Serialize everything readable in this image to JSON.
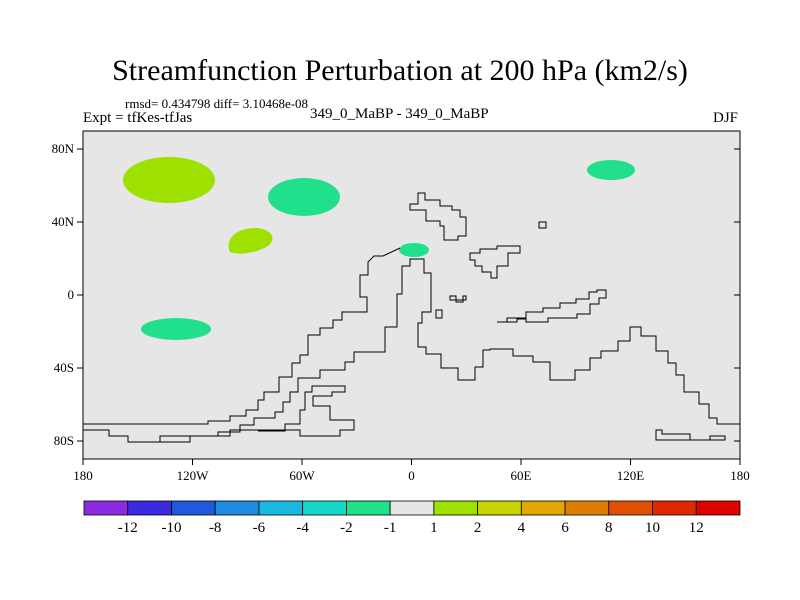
{
  "figure": {
    "title": "Streamfunction Perturbation at 200 hPa (km2/s)",
    "stats": "rmsd= 0.434798 diff= 3.10468e-08",
    "experiment": "Expt = tfKes-tfJas",
    "subtitle": "349_0_MaBP - 349_0_MaBP",
    "season": "DJF"
  },
  "axes": {
    "x_ticks": [
      "180",
      "120W",
      "60W",
      "0",
      "60E",
      "120E",
      "180"
    ],
    "y_ticks": [
      "80N",
      "40N",
      "0",
      "40S",
      "80S"
    ]
  },
  "colorbar": {
    "labels": [
      "-12",
      "-10",
      "-8",
      "-6",
      "-4",
      "-2",
      "-1",
      "1",
      "2",
      "4",
      "6",
      "8",
      "10",
      "12"
    ],
    "colors": [
      "#8a2be2",
      "#3a2be0",
      "#1e5adc",
      "#1c8be0",
      "#19b8e0",
      "#15d8c8",
      "#20e08c",
      "#e6e6e6",
      "#9ee000",
      "#c8d400",
      "#e0a800",
      "#e07c00",
      "#e05000",
      "#e02800",
      "#e00000"
    ]
  },
  "chart_data": {
    "type": "contour-map",
    "title": "Streamfunction Perturbation at 200 hPa (km2/s)",
    "xlim": [
      -180,
      180
    ],
    "ylim": [
      -90,
      90
    ],
    "anomalies": [
      {
        "lon": -135,
        "lat": 63,
        "value_band": "1 to 2",
        "color": "#9ee000"
      },
      {
        "lon": -58,
        "lat": 55,
        "value_band": "-2 to -1",
        "color": "#20e08c"
      },
      {
        "lon": -90,
        "lat": 29,
        "value_band": "1 to 2",
        "color": "#9ee000"
      },
      {
        "lon": -130,
        "lat": -18,
        "value_band": "-2 to -1",
        "color": "#20e08c"
      },
      {
        "lon": 1,
        "lat": 25,
        "value_band": "-2 to -1",
        "color": "#20e08c"
      },
      {
        "lon": 110,
        "lat": 68,
        "value_band": "-2 to -1",
        "color": "#20e08c"
      }
    ]
  }
}
